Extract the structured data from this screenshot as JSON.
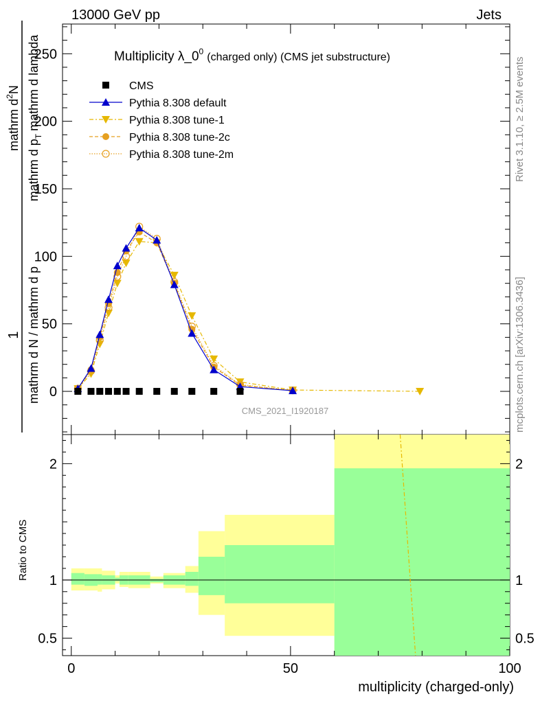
{
  "header": {
    "left": "13000 GeV pp",
    "right": "Jets"
  },
  "plot": {
    "title_main": "Multiplicity λ_0",
    "title_sup": "0",
    "title_sub": "(charged only) (CMS jet substructure)",
    "ylabel_numerator": "1",
    "ylabel_frac_den": "mathrm d N / mathrm d p",
    "ylabel_right_num": "mathrm d",
    "ylabel_right_sup": "2",
    "ylabel_right_N": "N",
    "ylabel_right_den": "mathrm d p",
    "ylabel_right_den_sub": "T",
    "ylabel_right_den_rest": "mathrm d lambda",
    "watermark": "CMS_2021_I1920187",
    "side_top": "Rivet 3.1.10, ≥ 2.5M events",
    "side_bottom": "mcplots.cern.ch [arXiv:1306.3436]",
    "ratio_ylabel": "Ratio to CMS",
    "xlabel": "multiplicity (charged-only)"
  },
  "colors": {
    "cms": "#000000",
    "default": "#0000cc",
    "tune1": "#e6b800",
    "tune2c": "#e6a020",
    "tune2m": "#e6a020",
    "band_inner": "#99ff99",
    "band_outer": "#ffff99"
  },
  "chart_data": {
    "type": "line",
    "xlim": [
      -2,
      100
    ],
    "ylim": [
      -32,
      272
    ],
    "yticks": [
      0,
      50,
      100,
      150,
      200,
      250
    ],
    "xticks": [
      0,
      50,
      100
    ],
    "ratio_ylim": [
      0.35,
      2.25
    ],
    "ratio_yticks": [
      0.5,
      1,
      2
    ],
    "legend_placement": "top-left",
    "series": [
      {
        "name": "CMS",
        "marker": "square",
        "x": [
          1.5,
          4.5,
          6.5,
          8.5,
          10.5,
          12.5,
          15.5,
          19.5,
          23.5,
          27.5,
          32.5,
          38.5
        ],
        "y": [
          0,
          0,
          0,
          0,
          0,
          0,
          0,
          0,
          0,
          0,
          0,
          0
        ]
      },
      {
        "name": "Pythia 8.308 default",
        "marker": "triangle-up",
        "x": [
          1.5,
          4.5,
          6.5,
          8.5,
          10.5,
          12.5,
          15.5,
          19.5,
          23.5,
          27.5,
          32.5,
          38.5,
          50.5
        ],
        "y": [
          2,
          17,
          42,
          68,
          93,
          106,
          121,
          112,
          79,
          43,
          16,
          3.5,
          0.5
        ]
      },
      {
        "name": "Pythia 8.308 tune-1",
        "marker": "triangle-down",
        "x": [
          1.5,
          4.5,
          6.5,
          8.5,
          10.5,
          12.5,
          15.5,
          19.5,
          23.5,
          27.5,
          32.5,
          38.5,
          50.5,
          79.5
        ],
        "y": [
          2,
          13,
          35,
          58,
          80,
          95,
          111,
          110,
          86,
          56,
          24,
          7,
          1,
          0
        ]
      },
      {
        "name": "Pythia 8.308 tune-2c",
        "marker": "circle",
        "x": [
          1.5,
          4.5,
          6.5,
          8.5,
          10.5,
          12.5,
          15.5,
          19.5,
          23.5,
          27.5,
          32.5,
          38.5,
          50.5
        ],
        "y": [
          2,
          16,
          40,
          65,
          88,
          104,
          118,
          110,
          80,
          46,
          18,
          4.5,
          0.6
        ]
      },
      {
        "name": "Pythia 8.308 tune-2m",
        "marker": "circle-open",
        "x": [
          1.5,
          4.5,
          6.5,
          8.5,
          10.5,
          12.5,
          15.5,
          19.5,
          23.5,
          27.5,
          32.5,
          38.5,
          50.5
        ],
        "y": [
          2,
          15,
          38,
          62,
          85,
          100,
          122,
          113,
          81,
          48,
          19,
          5,
          0.7
        ]
      }
    ],
    "ratio_bands": [
      {
        "x0": 0,
        "x1": 3,
        "inner": [
          0.96,
          1.06
        ],
        "outer": [
          0.91,
          1.1
        ]
      },
      {
        "x0": 3,
        "x1": 6,
        "inner": [
          0.95,
          1.05
        ],
        "outer": [
          0.91,
          1.1
        ]
      },
      {
        "x0": 6,
        "x1": 7,
        "inner": [
          0.96,
          1.05
        ],
        "outer": [
          0.9,
          1.1
        ]
      },
      {
        "x0": 7,
        "x1": 10,
        "inner": [
          0.96,
          1.04
        ],
        "outer": [
          0.92,
          1.08
        ]
      },
      {
        "x0": 10,
        "x1": 11,
        "inner": [
          0.99,
          1.02
        ],
        "outer": [
          0.97,
          1.04
        ]
      },
      {
        "x0": 11,
        "x1": 13,
        "inner": [
          0.96,
          1.04
        ],
        "outer": [
          0.94,
          1.07
        ]
      },
      {
        "x0": 13,
        "x1": 18,
        "inner": [
          0.96,
          1.04
        ],
        "outer": [
          0.93,
          1.07
        ]
      },
      {
        "x0": 18,
        "x1": 21,
        "inner": [
          0.98,
          1.01
        ],
        "outer": [
          0.97,
          1.03
        ]
      },
      {
        "x0": 21,
        "x1": 26,
        "inner": [
          0.96,
          1.04
        ],
        "outer": [
          0.93,
          1.06
        ]
      },
      {
        "x0": 26,
        "x1": 29,
        "inner": [
          0.95,
          1.07
        ],
        "outer": [
          0.89,
          1.12
        ]
      },
      {
        "x0": 29,
        "x1": 35,
        "inner": [
          0.87,
          1.2
        ],
        "outer": [
          0.7,
          1.42
        ]
      },
      {
        "x0": 35,
        "x1": 60,
        "inner": [
          0.8,
          1.3
        ],
        "outer": [
          0.52,
          1.56
        ]
      },
      {
        "x0": 60,
        "x1": 100,
        "inner": [
          0.2,
          1.96
        ],
        "outer": [
          0.1,
          2.4
        ]
      }
    ],
    "ratio_tune1_line": [
      [
        75,
        2.25
      ],
      [
        78.5,
        0.35
      ]
    ]
  }
}
